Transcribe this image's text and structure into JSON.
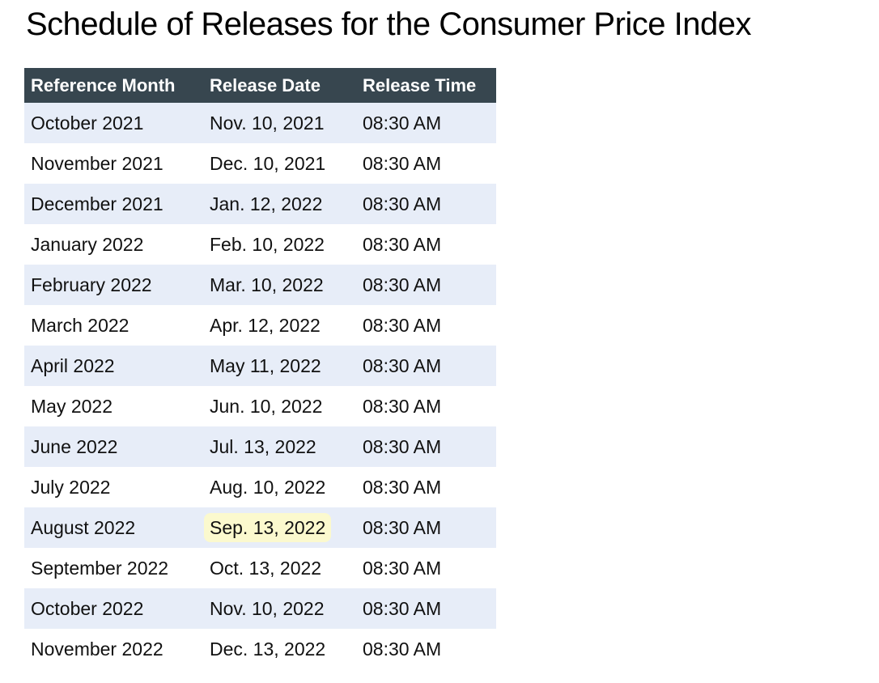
{
  "title": "Schedule of Releases for the Consumer Price Index",
  "chart_data": {
    "type": "table",
    "title": "Schedule of Releases for the Consumer Price Index",
    "columns": [
      "Reference Month",
      "Release Date",
      "Release Time"
    ],
    "rows": [
      [
        "October 2021",
        "Nov. 10, 2021",
        "08:30 AM"
      ],
      [
        "November 2021",
        "Dec. 10, 2021",
        "08:30 AM"
      ],
      [
        "December 2021",
        "Jan. 12, 2022",
        "08:30 AM"
      ],
      [
        "January 2022",
        "Feb. 10, 2022",
        "08:30 AM"
      ],
      [
        "February 2022",
        "Mar. 10, 2022",
        "08:30 AM"
      ],
      [
        "March 2022",
        "Apr. 12, 2022",
        "08:30 AM"
      ],
      [
        "April 2022",
        "May 11, 2022",
        "08:30 AM"
      ],
      [
        "May 2022",
        "Jun. 10, 2022",
        "08:30 AM"
      ],
      [
        "June 2022",
        "Jul. 13, 2022",
        "08:30 AM"
      ],
      [
        "July 2022",
        "Aug. 10, 2022",
        "08:30 AM"
      ],
      [
        "August 2022",
        "Sep. 13, 2022",
        "08:30 AM"
      ],
      [
        "September 2022",
        "Oct. 13, 2022",
        "08:30 AM"
      ],
      [
        "October 2022",
        "Nov. 10, 2022",
        "08:30 AM"
      ],
      [
        "November 2022",
        "Dec. 13, 2022",
        "08:30 AM"
      ]
    ],
    "highlight": {
      "row_index": 10,
      "col_index": 1,
      "row_label": "August 2022",
      "column_label": "Release Date",
      "value": "Sep. 13, 2022"
    },
    "layout": {
      "striped": true,
      "first_row_shaded": true,
      "grid": false
    }
  },
  "colors": {
    "header_bg": "#37464f",
    "header_text": "#ffffff",
    "row_bg": "#ffffff",
    "row_alt_bg": "#e7edf8",
    "body_text": "#111111",
    "highlight_bg": "#fbf9ce"
  }
}
